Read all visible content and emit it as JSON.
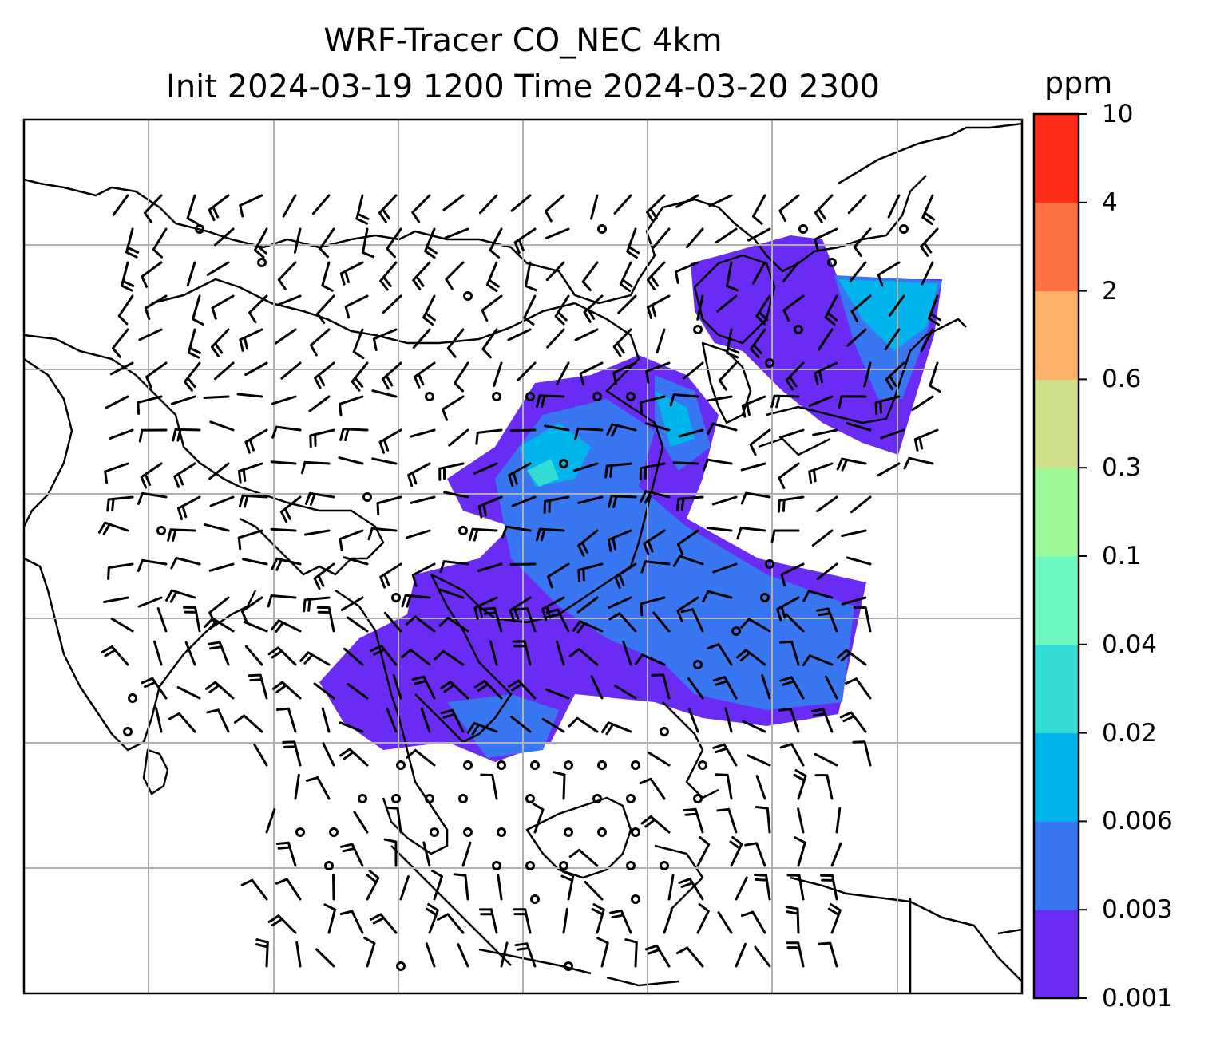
{
  "title": {
    "line1": "WRF-Tracer CO_NEC 4km",
    "line2": "Init 2024-03-19 1200 Time 2024-03-20 2300"
  },
  "colorbar": {
    "unit": "ppm",
    "levels": [
      "0.001",
      "0.003",
      "0.006",
      "0.02",
      "0.04",
      "0.1",
      "0.3",
      "0.6",
      "2",
      "4",
      "10"
    ],
    "colors": [
      "#6a2cf5",
      "#3876f2",
      "#00b4ec",
      "#33ddd6",
      "#6ff8c0",
      "#9cfa98",
      "#cfe08a",
      "#fdb168",
      "#ff7040",
      "#ff2d18"
    ]
  },
  "map": {
    "plume_colors": {
      "low": "#6a2cf5",
      "mid": "#3876f2",
      "high": "#00b4ec",
      "peak": "#33ddd6"
    },
    "coast_color": "#000000",
    "grid_color": "#b0b0b0",
    "wind_barb_color": "#000000"
  }
}
